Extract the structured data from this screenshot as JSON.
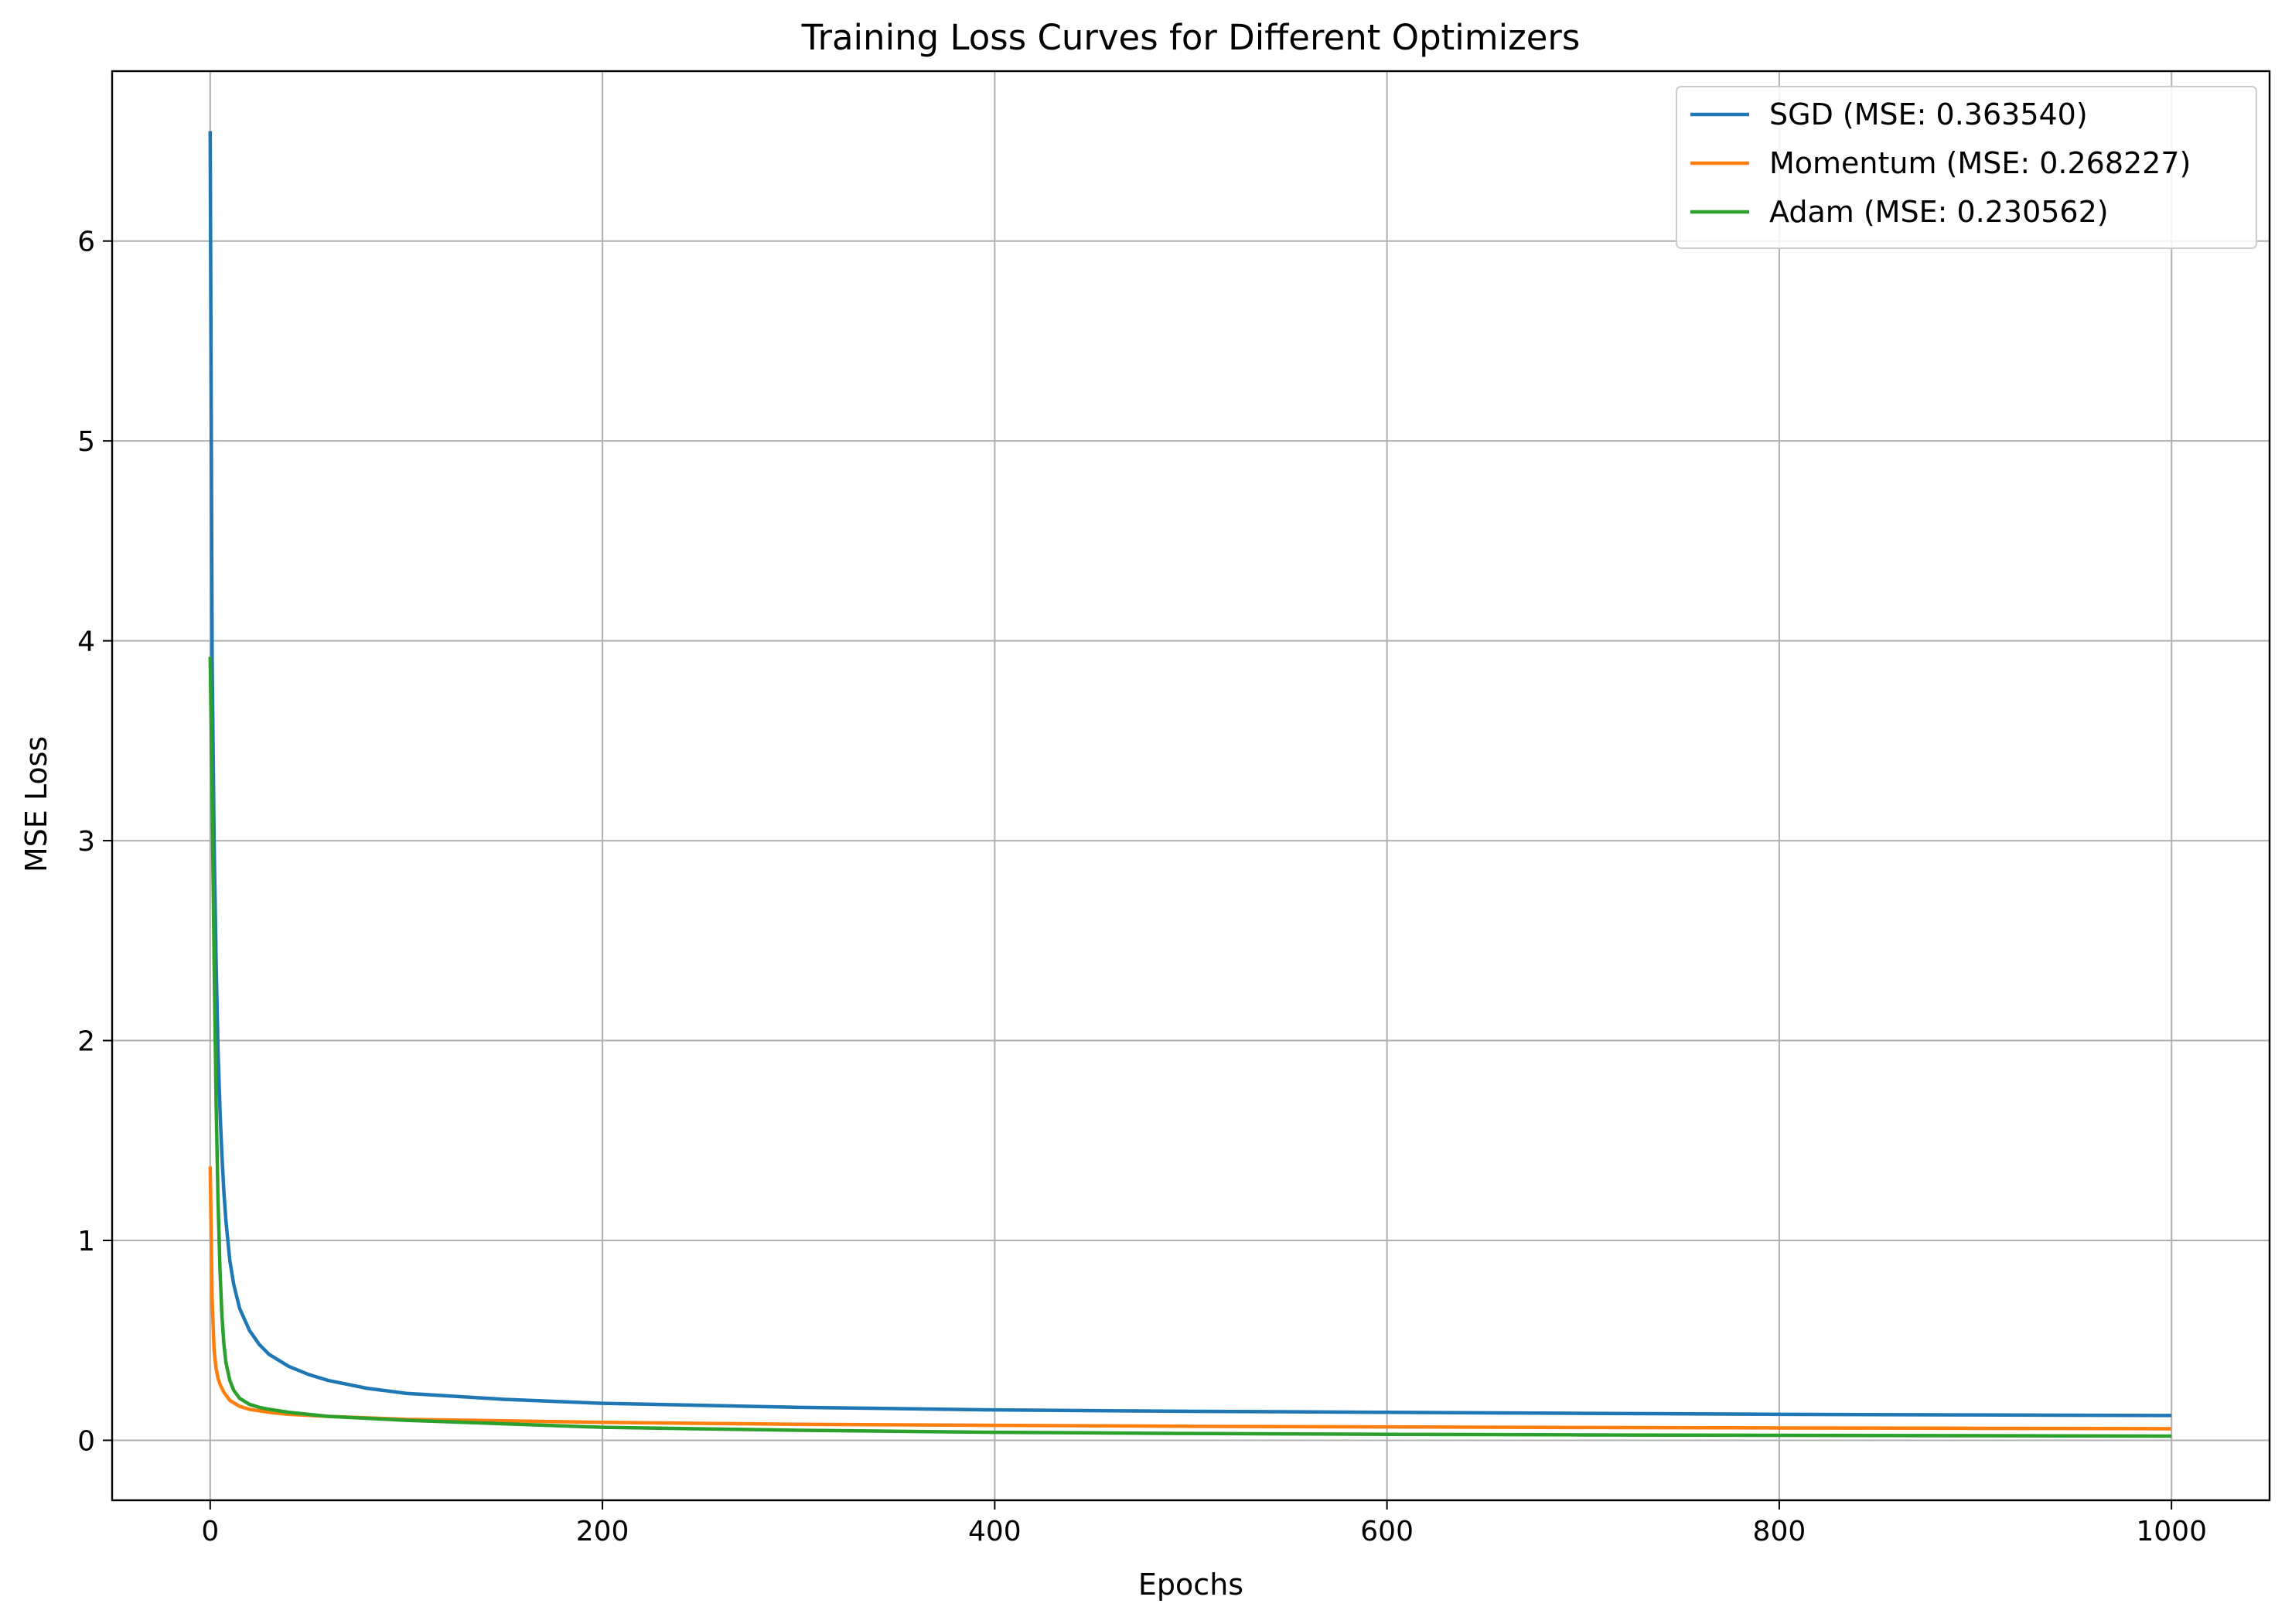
{
  "chart_data": {
    "type": "line",
    "title": "Training Loss Curves for Different Optimizers",
    "xlabel": "Epochs",
    "ylabel": "MSE Loss",
    "xlim": [
      -50,
      1050
    ],
    "ylim": [
      -0.3,
      6.85
    ],
    "xticks": [
      0,
      200,
      400,
      600,
      800,
      1000
    ],
    "yticks": [
      0,
      1,
      2,
      3,
      4,
      5,
      6
    ],
    "grid": true,
    "legend_position": "top-right",
    "series": [
      {
        "name": "SGD (MSE: 0.363540)",
        "color": "#1f77b4",
        "x": [
          0,
          1,
          2,
          3,
          4,
          5,
          6,
          7,
          8,
          10,
          12,
          15,
          20,
          25,
          30,
          40,
          50,
          60,
          80,
          100,
          150,
          200,
          300,
          400,
          500,
          600,
          700,
          800,
          900,
          1000
        ],
        "y": [
          6.55,
          3.9,
          3.0,
          2.4,
          1.95,
          1.65,
          1.42,
          1.24,
          1.1,
          0.9,
          0.78,
          0.66,
          0.55,
          0.48,
          0.43,
          0.37,
          0.33,
          0.3,
          0.26,
          0.235,
          0.205,
          0.185,
          0.165,
          0.152,
          0.145,
          0.14,
          0.135,
          0.13,
          0.127,
          0.124
        ]
      },
      {
        "name": "Momentum (MSE: 0.268227)",
        "color": "#ff7f0e",
        "x": [
          0,
          1,
          2,
          3,
          4,
          5,
          7,
          10,
          15,
          20,
          30,
          40,
          60,
          100,
          200,
          300,
          400,
          500,
          600,
          700,
          800,
          900,
          1000
        ],
        "y": [
          1.37,
          0.7,
          0.45,
          0.36,
          0.31,
          0.28,
          0.24,
          0.2,
          0.17,
          0.155,
          0.14,
          0.13,
          0.12,
          0.105,
          0.09,
          0.08,
          0.075,
          0.07,
          0.067,
          0.064,
          0.062,
          0.06,
          0.058
        ]
      },
      {
        "name": "Adam (MSE: 0.230562)",
        "color": "#2ca02c",
        "x": [
          0,
          1,
          2,
          3,
          4,
          5,
          6,
          7,
          8,
          10,
          12,
          15,
          20,
          25,
          30,
          40,
          60,
          100,
          200,
          300,
          400,
          500,
          600,
          700,
          800,
          900,
          1000
        ],
        "y": [
          3.92,
          3.2,
          2.4,
          1.7,
          1.2,
          0.85,
          0.62,
          0.48,
          0.39,
          0.3,
          0.25,
          0.21,
          0.18,
          0.165,
          0.155,
          0.14,
          0.12,
          0.1,
          0.065,
          0.05,
          0.04,
          0.034,
          0.03,
          0.027,
          0.025,
          0.023,
          0.021
        ]
      }
    ]
  }
}
